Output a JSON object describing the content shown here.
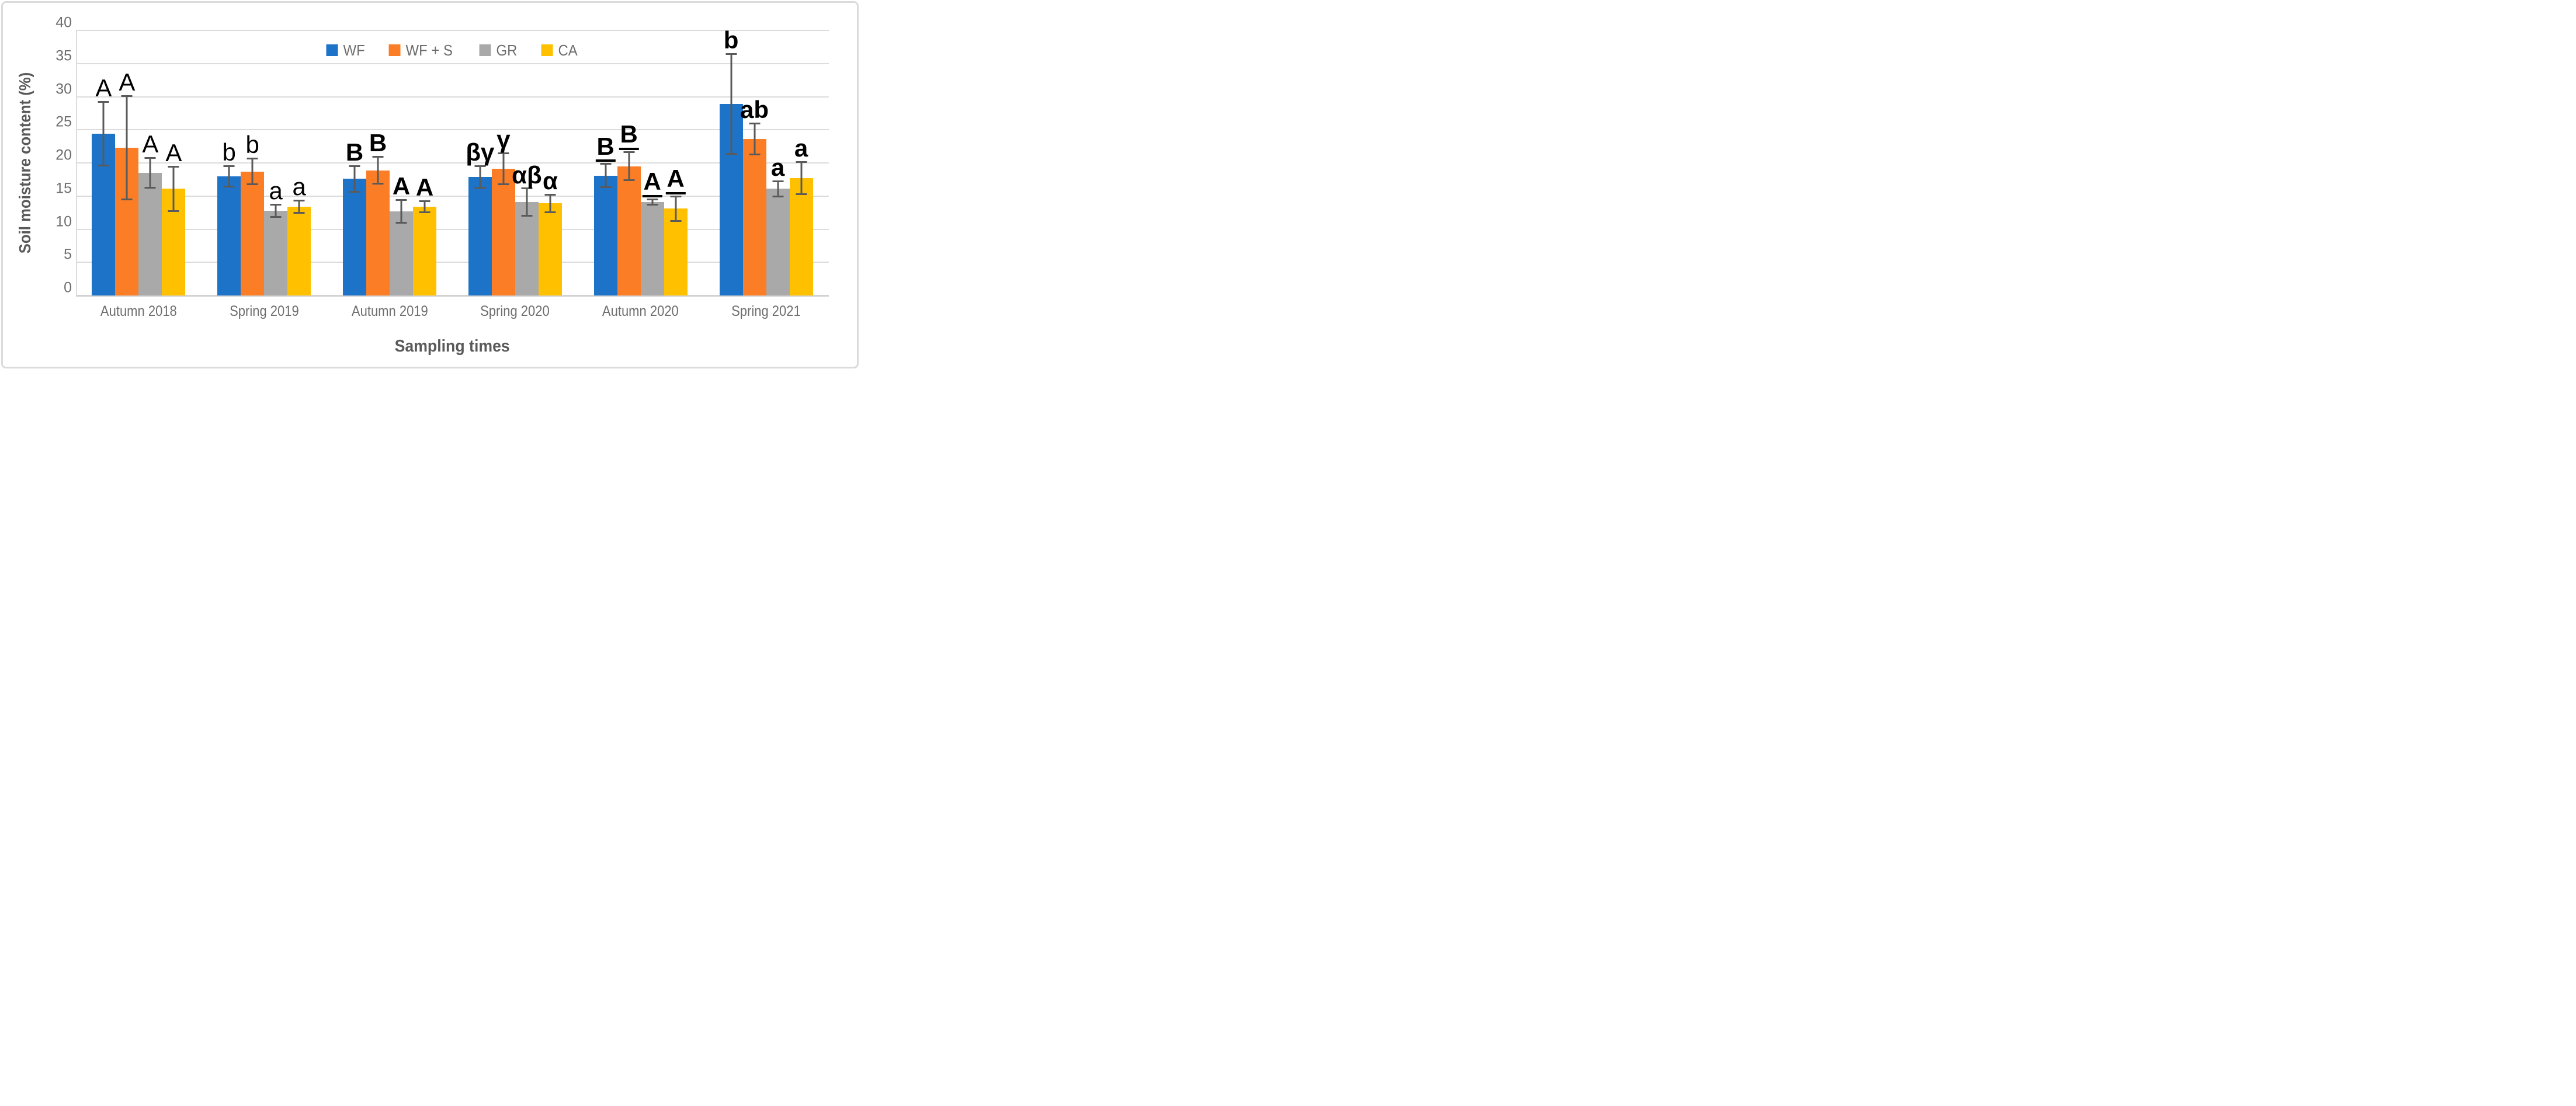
{
  "chart_data": {
    "type": "bar",
    "title": "",
    "xlabel": "Sampling times",
    "ylabel": "Soil moisture content (%)",
    "ylim": [
      0,
      40
    ],
    "ytick_step": 5,
    "grid": true,
    "legend_position": "top-center",
    "error_bar_color": "#5A5A5A",
    "categories": [
      "Autumn 2018",
      "Spring 2019",
      "Autumn 2019",
      "Spring 2020",
      "Autumn 2020",
      "Spring 2021"
    ],
    "series": [
      {
        "name": "WF",
        "color": "#1C73C8",
        "values": [
          24.4,
          18.0,
          17.6,
          17.9,
          18.1,
          28.9
        ],
        "errors": [
          4.7,
          1.4,
          1.8,
          1.5,
          1.6,
          7.4
        ]
      },
      {
        "name": "WF + S",
        "color": "#FB7D26",
        "values": [
          22.3,
          18.7,
          18.9,
          19.1,
          19.5,
          23.6
        ],
        "errors": [
          7.7,
          1.8,
          1.9,
          2.2,
          2.0,
          2.2
        ]
      },
      {
        "name": "GR",
        "color": "#A9A9A9",
        "values": [
          18.5,
          12.8,
          12.7,
          14.1,
          14.1,
          16.1
        ],
        "errors": [
          2.1,
          0.8,
          1.6,
          1.9,
          0.3,
          1.0
        ]
      },
      {
        "name": "CA",
        "color": "#FFC000",
        "values": [
          16.1,
          13.4,
          13.4,
          13.9,
          13.1,
          17.7
        ],
        "errors": [
          3.2,
          0.8,
          0.7,
          1.2,
          1.7,
          2.3
        ]
      }
    ],
    "annotations": [
      {
        "labels": [
          "A",
          "A",
          "A",
          "A"
        ],
        "bold": false,
        "underline": false
      },
      {
        "labels": [
          "b",
          "b",
          "a",
          "a"
        ],
        "bold": false,
        "underline": false
      },
      {
        "labels": [
          "B",
          "B",
          "A",
          "A"
        ],
        "bold": true,
        "underline": false
      },
      {
        "labels": [
          "βγ",
          "γ",
          "αβ",
          "α"
        ],
        "bold": true,
        "underline": false
      },
      {
        "labels": [
          "B",
          "B",
          "A",
          "A"
        ],
        "bold": true,
        "underline": true
      },
      {
        "labels": [
          "b",
          "ab",
          "a",
          "a"
        ],
        "bold": true,
        "underline": false
      }
    ]
  }
}
